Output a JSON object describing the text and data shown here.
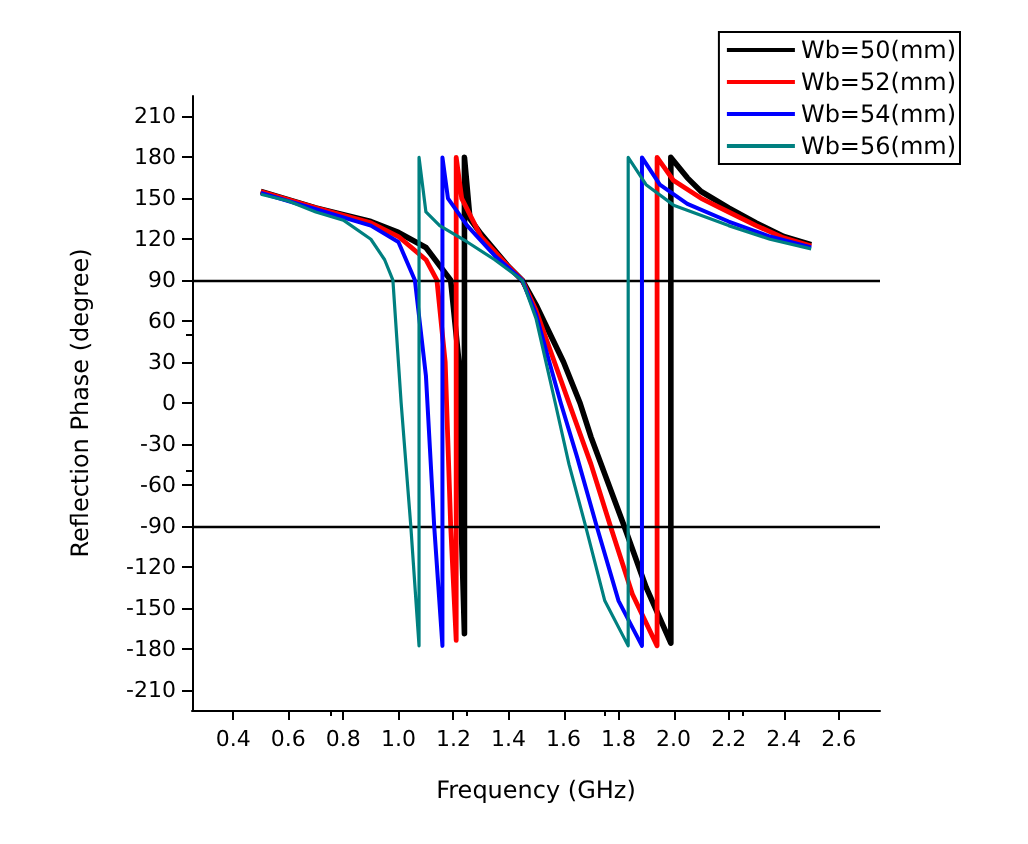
{
  "chart_data": {
    "type": "line",
    "xlabel": "Frequency (GHz)",
    "ylabel": "Reflection Phase (degree)",
    "xlim": [
      0.25,
      2.75
    ],
    "xticks": [
      0.4,
      0.6,
      0.8,
      {
        "value": 1.0,
        "label": "1.0"
      },
      1.2,
      1.4,
      1.6,
      1.8,
      {
        "value": 2.0,
        "label": "2.0"
      },
      2.2,
      2.4,
      2.6
    ],
    "ylim": [
      -225,
      225
    ],
    "yticks": [
      -210,
      -180,
      -150,
      -120,
      -90,
      -60,
      -30,
      0,
      30,
      60,
      90,
      120,
      150,
      180,
      210
    ],
    "grid": false,
    "legend": "top right",
    "marker": "none",
    "line_style": "solid",
    "ref_lines": [
      {
        "axis": "y",
        "value": 90,
        "label": null,
        "color": "#000000"
      },
      {
        "axis": "y",
        "value": -90,
        "label": null,
        "color": "#000000"
      }
    ],
    "series": [
      {
        "name": "Wb=50(mm)",
        "color": "#000000",
        "x": [
          0.5,
          0.7,
          0.9,
          1.0,
          1.1,
          1.19,
          1.22,
          1.23,
          1.24,
          1.24,
          1.26,
          1.3,
          1.4,
          1.45,
          1.5,
          1.6,
          1.66,
          1.7,
          1.82,
          1.9,
          1.99,
          1.99,
          2.05,
          2.1,
          2.2,
          2.3,
          2.4,
          2.5
        ],
        "values": [
          155,
          143,
          133,
          125,
          114,
          90,
          30,
          -100,
          -169,
          180,
          135,
          124,
          100,
          90,
          72,
          30,
          0,
          -25,
          -90,
          -135,
          -176,
          180,
          165,
          155,
          143,
          132,
          122,
          116
        ]
      },
      {
        "name": "Wb=52(mm)",
        "color": "#ff0000",
        "x": [
          0.5,
          0.7,
          0.9,
          1.0,
          1.1,
          1.14,
          1.17,
          1.19,
          1.21,
          1.21,
          1.23,
          1.3,
          1.4,
          1.45,
          1.5,
          1.62,
          1.7,
          1.77,
          1.85,
          1.94,
          1.94,
          2.0,
          2.1,
          2.2,
          2.3,
          2.4,
          2.5
        ],
        "values": [
          155,
          143,
          132,
          122,
          105,
          90,
          30,
          -90,
          -174,
          180,
          150,
          122,
          100,
          90,
          68,
          0,
          -45,
          -90,
          -140,
          -178,
          180,
          163,
          150,
          140,
          130,
          121,
          115
        ]
      },
      {
        "name": "Wb=54(mm)",
        "color": "#0000ff",
        "x": [
          0.5,
          0.7,
          0.9,
          1.0,
          1.06,
          1.1,
          1.13,
          1.16,
          1.16,
          1.18,
          1.25,
          1.35,
          1.45,
          1.5,
          1.59,
          1.65,
          1.72,
          1.8,
          1.885,
          1.885,
          1.95,
          2.05,
          2.2,
          2.35,
          2.5
        ],
        "values": [
          154,
          142,
          130,
          118,
          90,
          20,
          -90,
          -178,
          180,
          150,
          130,
          108,
          90,
          65,
          0,
          -40,
          -90,
          -145,
          -178,
          180,
          160,
          146,
          133,
          122,
          114
        ]
      },
      {
        "name": "Wb=56(mm)",
        "color": "#008080",
        "x": [
          0.5,
          0.6,
          0.7,
          0.8,
          0.9,
          0.95,
          0.98,
          1.01,
          1.045,
          1.075,
          1.075,
          1.1,
          1.15,
          1.25,
          1.35,
          1.45,
          1.5,
          1.57,
          1.62,
          1.68,
          1.75,
          1.835,
          1.835,
          1.9,
          2.0,
          2.2,
          2.35,
          2.5
        ],
        "values": [
          153,
          148,
          140,
          134,
          120,
          105,
          90,
          0,
          -90,
          -178,
          180,
          140,
          130,
          118,
          105,
          90,
          62,
          0,
          -45,
          -90,
          -145,
          -178,
          180,
          160,
          145,
          130,
          120,
          113
        ]
      }
    ]
  }
}
